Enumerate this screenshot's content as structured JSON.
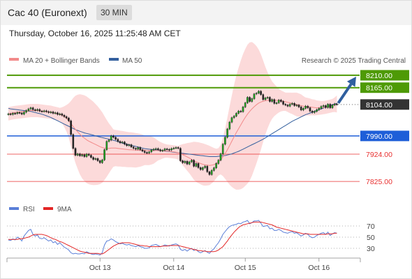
{
  "header": {
    "title": "Cac 40 (Euronext)",
    "timeframe": "30 MIN",
    "timestamp": "Thursday, October 16, 2025 11:25:48 AM CET"
  },
  "legend": {
    "ma20_bb": "MA 20 + Bollinger Bands",
    "ma50": "MA 50",
    "credit": "Research © 2025 Trading Central",
    "rsi": "RSI",
    "rsi_ma": "9MA"
  },
  "colors": {
    "green": "#4e9a06",
    "blue": "#1e5ed8",
    "red": "#e83030",
    "current": "#333333",
    "bb_fill": "#fcd4d4",
    "ma20": "#f28a8a",
    "ma50": "#34609e",
    "arrow": "#2f5f9f"
  },
  "chart_data": [
    {
      "type": "candlestick",
      "instrument": "Cac 40 (Euronext)",
      "interval": "30 MIN",
      "ylim": [
        7800,
        8230
      ],
      "x_ticks": [
        "Oct 13",
        "Oct 14",
        "Oct 15",
        "Oct 16"
      ],
      "levels": [
        {
          "value": 8210,
          "label": "8210.00",
          "style": "resistance"
        },
        {
          "value": 8165,
          "label": "8165.00",
          "style": "resistance"
        },
        {
          "value": 8104,
          "label": "8104.00",
          "style": "current"
        },
        {
          "value": 7990,
          "label": "7990.00",
          "style": "pivot"
        },
        {
          "value": 7924,
          "label": "7924.00",
          "style": "support"
        },
        {
          "value": 7825,
          "label": "7825.00",
          "style": "support"
        }
      ],
      "close": [
        8070,
        8068,
        8072,
        8071,
        8075,
        8073,
        8069,
        8076,
        8082,
        8088,
        8092,
        8085,
        8083,
        8086,
        8080,
        8079,
        8081,
        8078,
        8075,
        8077,
        8072,
        8074,
        8068,
        8070,
        8065,
        8060,
        8055,
        8045,
        7995,
        7945,
        7920,
        7925,
        7918,
        7922,
        7915,
        7924,
        7920,
        7912,
        7905,
        7908,
        7900,
        7893,
        7903,
        7940,
        7970,
        7975,
        7990,
        7985,
        7978,
        7970,
        7965,
        7968,
        7960,
        7955,
        7958,
        7950,
        7945,
        7942,
        7948,
        7940,
        7935,
        7930,
        7928,
        7932,
        7939,
        7942,
        7944,
        7940,
        7936,
        7938,
        7943,
        7941,
        7939,
        7944,
        7946,
        7948,
        7945,
        7900,
        7893,
        7898,
        7888,
        7896,
        7902,
        7880,
        7890,
        7875,
        7868,
        7875,
        7880,
        7860,
        7850,
        7865,
        7874,
        7890,
        7902,
        7925,
        7960,
        7985,
        8015,
        8040,
        8056,
        8062,
        8072,
        8080,
        8078,
        8095,
        8110,
        8130,
        8115,
        8125,
        8142,
        8145,
        8152,
        8140,
        8122,
        8128,
        8130,
        8115,
        8122,
        8108,
        8110,
        8120,
        8115,
        8105,
        8102,
        8098,
        8105,
        8108,
        8100,
        8102,
        8095,
        8084,
        8090,
        8098,
        8092,
        8080,
        8075,
        8079,
        8085,
        8090,
        8097,
        8100,
        8093,
        8105,
        8092,
        8102,
        8106,
        8104
      ],
      "ma20": [
        8070,
        8072,
        8074,
        8075,
        8076,
        8077,
        8078,
        8079,
        8080,
        8081,
        8082,
        8082,
        8082,
        8082,
        8081,
        8080,
        8079,
        8078,
        8077,
        8076,
        8074,
        8072,
        8070,
        8068,
        8065,
        8060,
        8054,
        8046,
        8035,
        8024,
        8014,
        8005,
        7996,
        7988,
        7982,
        7976,
        7971,
        7967,
        7963,
        7959,
        7955,
        7951,
        7948,
        7946,
        7945,
        7945,
        7946,
        7946,
        7946,
        7945,
        7944,
        7943,
        7942,
        7941,
        7940,
        7940,
        7939,
        7938,
        7938,
        7938,
        7938,
        7938,
        7937,
        7937,
        7937,
        7937,
        7937,
        7937,
        7936,
        7936,
        7936,
        7935,
        7934,
        7933,
        7932,
        7931,
        7929,
        7926,
        7922,
        7918,
        7914,
        7910,
        7905,
        7900,
        7896,
        7893,
        7890,
        7887,
        7885,
        7884,
        7883,
        7884,
        7886,
        7890,
        7896,
        7904,
        7914,
        7926,
        7940,
        7955,
        7971,
        7987,
        8002,
        8016,
        8030,
        8044,
        8057,
        8069,
        8079,
        8088,
        8096,
        8103,
        8109,
        8113,
        8116,
        8118,
        8119,
        8120,
        8120,
        8120,
        8119,
        8118,
        8117,
        8116,
        8114,
        8112,
        8110,
        8108,
        8106,
        8104,
        8102,
        8100,
        8098,
        8097,
        8096,
        8095,
        8094,
        8093,
        8092,
        8092,
        8092,
        8093,
        8094,
        8096,
        8098,
        8100,
        8103,
        8106
      ],
      "ma50": [
        8090,
        8088,
        8087,
        8086,
        8085,
        8084,
        8083,
        8082,
        8081,
        8080,
        8079,
        8077,
        8075,
        8073,
        8071,
        8069,
        8066,
        8063,
        8060,
        8057,
        8053,
        8049,
        8045,
        8041,
        8037,
        8033,
        8029,
        8025,
        8021,
        8017,
        8013,
        8010,
        8007,
        8004,
        8001,
        7999,
        7997,
        7995,
        7993,
        7990,
        7988,
        7986,
        7984,
        7982,
        7980,
        7978,
        7976,
        7974,
        7972,
        7970,
        7967,
        7964,
        7962,
        7960,
        7958,
        7956,
        7954,
        7952,
        7950,
        7948,
        7946,
        7944,
        7943,
        7942,
        7941,
        7940,
        7939,
        7938,
        7937,
        7936,
        7935,
        7934,
        7933,
        7932,
        7931,
        7930,
        7929,
        7928,
        7927,
        7926,
        7925,
        7924,
        7923,
        7922,
        7921,
        7920,
        7919,
        7918,
        7917,
        7916,
        7915,
        7915,
        7915,
        7915,
        7916,
        7917,
        7918,
        7919,
        7921,
        7923,
        7925,
        7928,
        7931,
        7934,
        7938,
        7942,
        7946,
        7950,
        7954,
        7958,
        7962,
        7966,
        7970,
        7974,
        7978,
        7983,
        7988,
        7993,
        7998,
        8003,
        8008,
        8013,
        8018,
        8023,
        8028,
        8033,
        8038,
        8043,
        8047,
        8051,
        8055,
        8059,
        8063,
        8067,
        8070,
        8073,
        8076,
        8079,
        8082,
        8085,
        8088,
        8091,
        8094,
        8097,
        8100,
        8103,
        8106,
        8108
      ],
      "forecast": {
        "from": 8104,
        "to": 8210
      }
    },
    {
      "type": "line",
      "name": "RSI",
      "ylim": [
        15,
        85
      ],
      "y_ticks": [
        70,
        50,
        30
      ],
      "series": [
        {
          "name": "RSI",
          "color": "#5a7fd8",
          "values": [
            45,
            44,
            47,
            45,
            50,
            48,
            43,
            52,
            57,
            62,
            64,
            55,
            52,
            54,
            48,
            47,
            49,
            46,
            43,
            45,
            40,
            42,
            37,
            40,
            36,
            32,
            30,
            27,
            22,
            20,
            21,
            20,
            20,
            21,
            20,
            24,
            22,
            20,
            19,
            20,
            19,
            18,
            22,
            36,
            43,
            44,
            47,
            45,
            42,
            40,
            38,
            39,
            37,
            36,
            37,
            35,
            34,
            33,
            35,
            33,
            32,
            30,
            30,
            31,
            35,
            36,
            37,
            35,
            33,
            34,
            36,
            35,
            34,
            36,
            37,
            38,
            36,
            28,
            26,
            28,
            25,
            28,
            30,
            26,
            28,
            24,
            22,
            24,
            26,
            23,
            21,
            26,
            29,
            35,
            40,
            47,
            55,
            60,
            65,
            69,
            71,
            72,
            73,
            75,
            74,
            77,
            78,
            80,
            74,
            76,
            79,
            79,
            80,
            75,
            69,
            70,
            71,
            65,
            66,
            62,
            62,
            64,
            62,
            59,
            58,
            57,
            59,
            60,
            57,
            58,
            55,
            52,
            54,
            57,
            55,
            51,
            49,
            50,
            53,
            55,
            57,
            58,
            55,
            59,
            53,
            56,
            58,
            57
          ]
        },
        {
          "name": "9MA",
          "color": "#e32626",
          "values": [
            46,
            46,
            46,
            46,
            46,
            47,
            47,
            48,
            49,
            50,
            52,
            54,
            55,
            55,
            55,
            55,
            54,
            53,
            51,
            49,
            47,
            46,
            44,
            42,
            41,
            39,
            37,
            35,
            33,
            31,
            29,
            27,
            25,
            24,
            23,
            22,
            21,
            21,
            21,
            21,
            21,
            20,
            20,
            22,
            25,
            28,
            31,
            34,
            36,
            38,
            39,
            40,
            40,
            40,
            40,
            39,
            38,
            37,
            36,
            35,
            35,
            34,
            34,
            33,
            33,
            33,
            33,
            33,
            33,
            34,
            34,
            34,
            35,
            35,
            35,
            35,
            35,
            34,
            33,
            32,
            31,
            30,
            29,
            28,
            27,
            26,
            26,
            25,
            25,
            24,
            24,
            24,
            24,
            25,
            27,
            30,
            33,
            38,
            43,
            49,
            54,
            59,
            63,
            67,
            70,
            72,
            73,
            74,
            75,
            76,
            77,
            77,
            77,
            77,
            76,
            75,
            74,
            73,
            72,
            70,
            68,
            67,
            66,
            65,
            64,
            63,
            62,
            61,
            60,
            59,
            58,
            57,
            56,
            56,
            56,
            55,
            55,
            55,
            55,
            55,
            55,
            55,
            55,
            56,
            56,
            56,
            57,
            57
          ]
        }
      ]
    }
  ]
}
